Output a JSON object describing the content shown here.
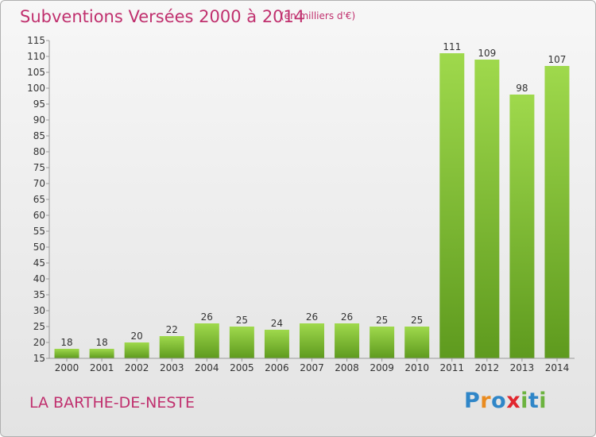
{
  "chart_data": {
    "type": "bar",
    "title": "Subventions Versées 2000 à 2014",
    "subtitle": "(en milliers d'€)",
    "categories": [
      "2000",
      "2001",
      "2002",
      "2003",
      "2004",
      "2005",
      "2006",
      "2007",
      "2008",
      "2009",
      "2010",
      "2011",
      "2012",
      "2013",
      "2014"
    ],
    "values": [
      18,
      18,
      20,
      22,
      26,
      25,
      24,
      26,
      26,
      25,
      25,
      111,
      109,
      98,
      107
    ],
    "y_ticks": [
      15,
      20,
      25,
      30,
      35,
      40,
      45,
      50,
      55,
      60,
      65,
      70,
      75,
      80,
      85,
      90,
      95,
      100,
      105,
      110,
      115
    ],
    "ylim": [
      15,
      115
    ],
    "grid": false,
    "bar_color": "#8ccc3c",
    "bar_color_dark": "#5e9a1e"
  },
  "footer": {
    "commune": "LA BARTHE-DE-NESTE",
    "logo_letters": [
      "P",
      "r",
      "o",
      "x",
      "i",
      "t",
      "i"
    ]
  },
  "colors": {
    "title": "#c0306e",
    "axis_text": "#333333"
  }
}
